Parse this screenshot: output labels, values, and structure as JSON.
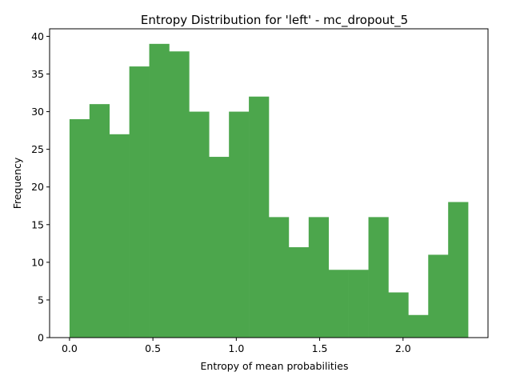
{
  "chart_data": {
    "type": "bar",
    "title": "Entropy Distribution for 'left' - mc_dropout_5",
    "xlabel": "Entropy of mean probabilities",
    "ylabel": "Frequency",
    "bin_edges": [
      0.0,
      0.1195,
      0.239,
      0.3585,
      0.478,
      0.5975,
      0.717,
      0.8365,
      0.956,
      1.0755,
      1.195,
      1.3145,
      1.434,
      1.5535,
      1.673,
      1.7925,
      1.912,
      2.0315,
      2.151,
      2.2705,
      2.39
    ],
    "values": [
      29,
      31,
      27,
      36,
      39,
      38,
      30,
      24,
      30,
      32,
      16,
      12,
      16,
      9,
      9,
      16,
      6,
      3,
      11,
      18
    ],
    "xlim": [
      -0.1195,
      2.5095
    ],
    "ylim": [
      0,
      41
    ],
    "xticks": [
      0.0,
      0.5,
      1.0,
      1.5,
      2.0
    ],
    "xtick_labels": [
      "0.0",
      "0.5",
      "1.0",
      "1.5",
      "2.0"
    ],
    "yticks": [
      0,
      5,
      10,
      15,
      20,
      25,
      30,
      35,
      40
    ],
    "ytick_labels": [
      "0",
      "5",
      "10",
      "15",
      "20",
      "25",
      "30",
      "35",
      "40"
    ],
    "bar_color": "#4ca64c",
    "grid": false
  }
}
